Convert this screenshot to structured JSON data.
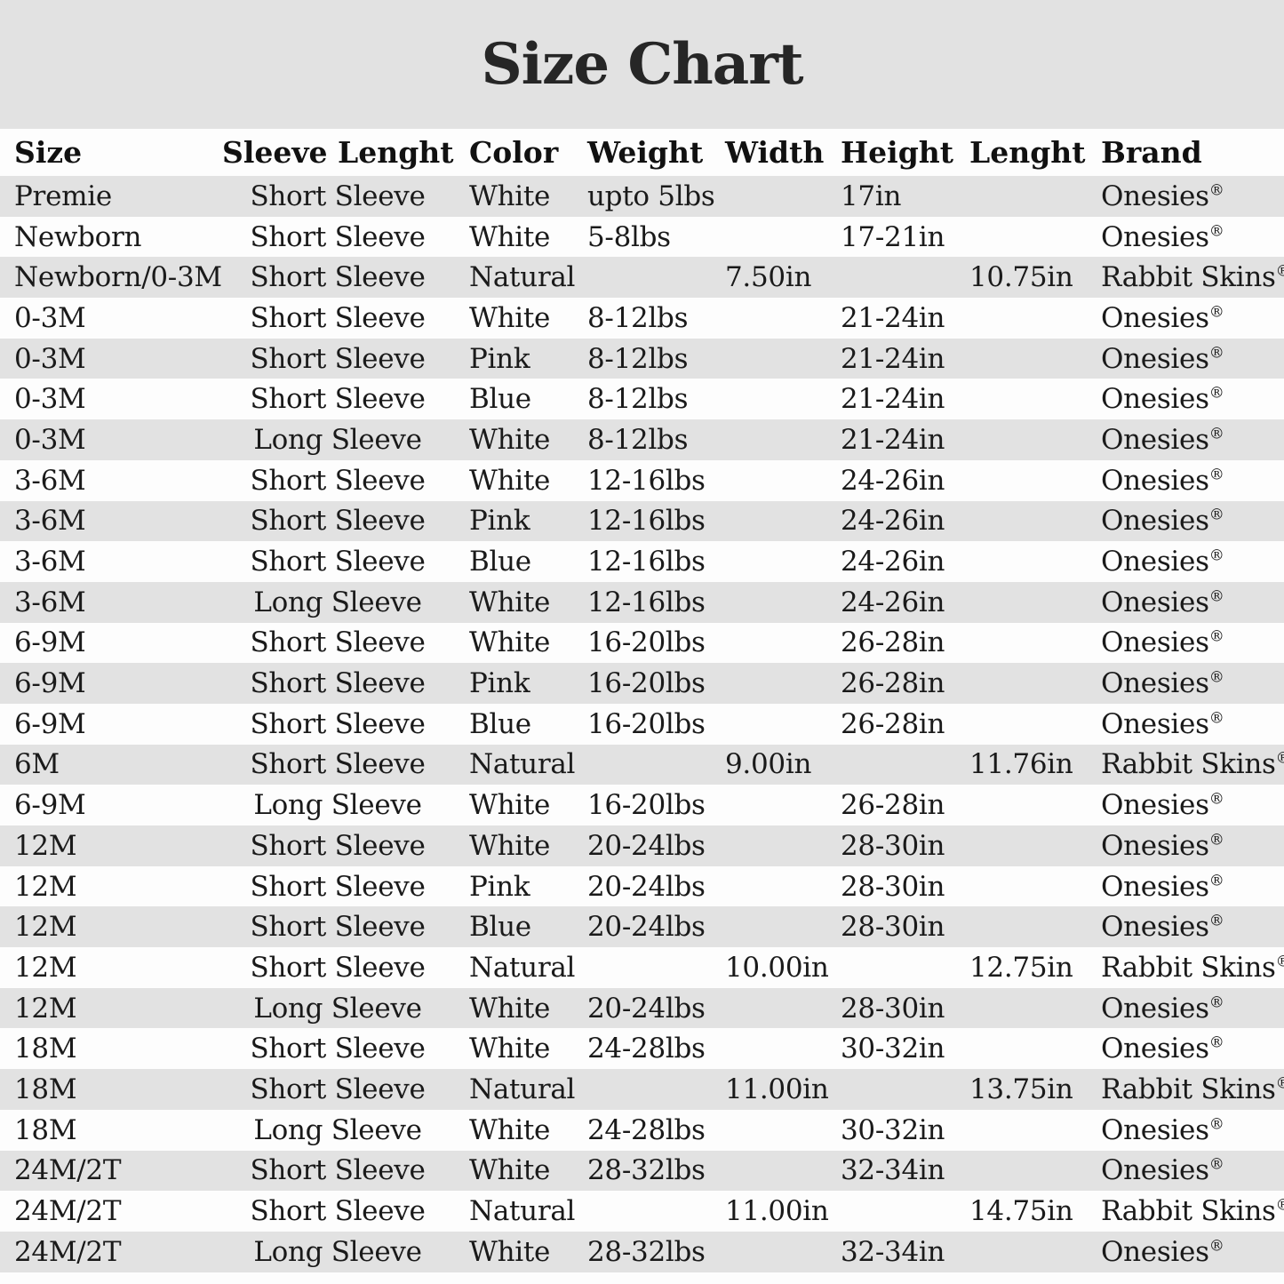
{
  "title": "Size Chart",
  "colors": {
    "stripe_gray": "#e2e2e2",
    "row_white": "#fdfdfd",
    "text": "#1a1a1a"
  },
  "chart_data": {
    "type": "table",
    "title": "Size Chart",
    "columns": [
      "Size",
      "Sleeve Lenght",
      "Color",
      "Weight",
      "Width",
      "Height",
      "Lenght",
      "Brand"
    ],
    "rows": [
      [
        "Premie",
        "Short Sleeve",
        "White",
        "upto 5lbs",
        "",
        "17in",
        "",
        "Onesies®"
      ],
      [
        "Newborn",
        "Short Sleeve",
        "White",
        "5-8lbs",
        "",
        "17-21in",
        "",
        "Onesies®"
      ],
      [
        "Newborn/0-3M",
        "Short Sleeve",
        "Natural",
        "",
        "7.50in",
        "",
        "10.75in",
        "Rabbit Skins®"
      ],
      [
        "0-3M",
        "Short Sleeve",
        "White",
        "8-12lbs",
        "",
        "21-24in",
        "",
        "Onesies®"
      ],
      [
        "0-3M",
        "Short Sleeve",
        "Pink",
        "8-12lbs",
        "",
        "21-24in",
        "",
        "Onesies®"
      ],
      [
        "0-3M",
        "Short Sleeve",
        "Blue",
        "8-12lbs",
        "",
        "21-24in",
        "",
        "Onesies®"
      ],
      [
        "0-3M",
        "Long Sleeve",
        "White",
        "8-12lbs",
        "",
        "21-24in",
        "",
        "Onesies®"
      ],
      [
        "3-6M",
        "Short Sleeve",
        "White",
        "12-16lbs",
        "",
        "24-26in",
        "",
        "Onesies®"
      ],
      [
        "3-6M",
        "Short Sleeve",
        "Pink",
        "12-16lbs",
        "",
        "24-26in",
        "",
        "Onesies®"
      ],
      [
        "3-6M",
        "Short Sleeve",
        "Blue",
        "12-16lbs",
        "",
        "24-26in",
        "",
        "Onesies®"
      ],
      [
        "3-6M",
        "Long Sleeve",
        "White",
        "12-16lbs",
        "",
        "24-26in",
        "",
        "Onesies®"
      ],
      [
        "6-9M",
        "Short Sleeve",
        "White",
        "16-20lbs",
        "",
        "26-28in",
        "",
        "Onesies®"
      ],
      [
        "6-9M",
        "Short Sleeve",
        "Pink",
        "16-20lbs",
        "",
        "26-28in",
        "",
        "Onesies®"
      ],
      [
        "6-9M",
        "Short Sleeve",
        "Blue",
        "16-20lbs",
        "",
        "26-28in",
        "",
        "Onesies®"
      ],
      [
        "6M",
        "Short Sleeve",
        "Natural",
        "",
        "9.00in",
        "",
        "11.76in",
        "Rabbit Skins®"
      ],
      [
        "6-9M",
        "Long Sleeve",
        "White",
        "16-20lbs",
        "",
        "26-28in",
        "",
        "Onesies®"
      ],
      [
        "12M",
        "Short Sleeve",
        "White",
        "20-24lbs",
        "",
        "28-30in",
        "",
        "Onesies®"
      ],
      [
        "12M",
        "Short Sleeve",
        "Pink",
        "20-24lbs",
        "",
        "28-30in",
        "",
        "Onesies®"
      ],
      [
        "12M",
        "Short Sleeve",
        "Blue",
        "20-24lbs",
        "",
        "28-30in",
        "",
        "Onesies®"
      ],
      [
        "12M",
        "Short Sleeve",
        "Natural",
        "",
        "10.00in",
        "",
        "12.75in",
        "Rabbit Skins®"
      ],
      [
        "12M",
        "Long Sleeve",
        "White",
        "20-24lbs",
        "",
        "28-30in",
        "",
        "Onesies®"
      ],
      [
        "18M",
        "Short Sleeve",
        "White",
        "24-28lbs",
        "",
        "30-32in",
        "",
        "Onesies®"
      ],
      [
        "18M",
        "Short Sleeve",
        "Natural",
        "",
        "11.00in",
        "",
        "13.75in",
        "Rabbit Skins®"
      ],
      [
        "18M",
        "Long Sleeve",
        "White",
        "24-28lbs",
        "",
        "30-32in",
        "",
        "Onesies®"
      ],
      [
        "24M/2T",
        "Short Sleeve",
        "White",
        "28-32lbs",
        "",
        "32-34in",
        "",
        "Onesies®"
      ],
      [
        "24M/2T",
        "Short Sleeve",
        "Natural",
        "",
        "11.00in",
        "",
        "14.75in",
        "Rabbit Skins®"
      ],
      [
        "24M/2T",
        "Long Sleeve",
        "White",
        "28-32lbs",
        "",
        "32-34in",
        "",
        "Onesies®"
      ]
    ]
  }
}
